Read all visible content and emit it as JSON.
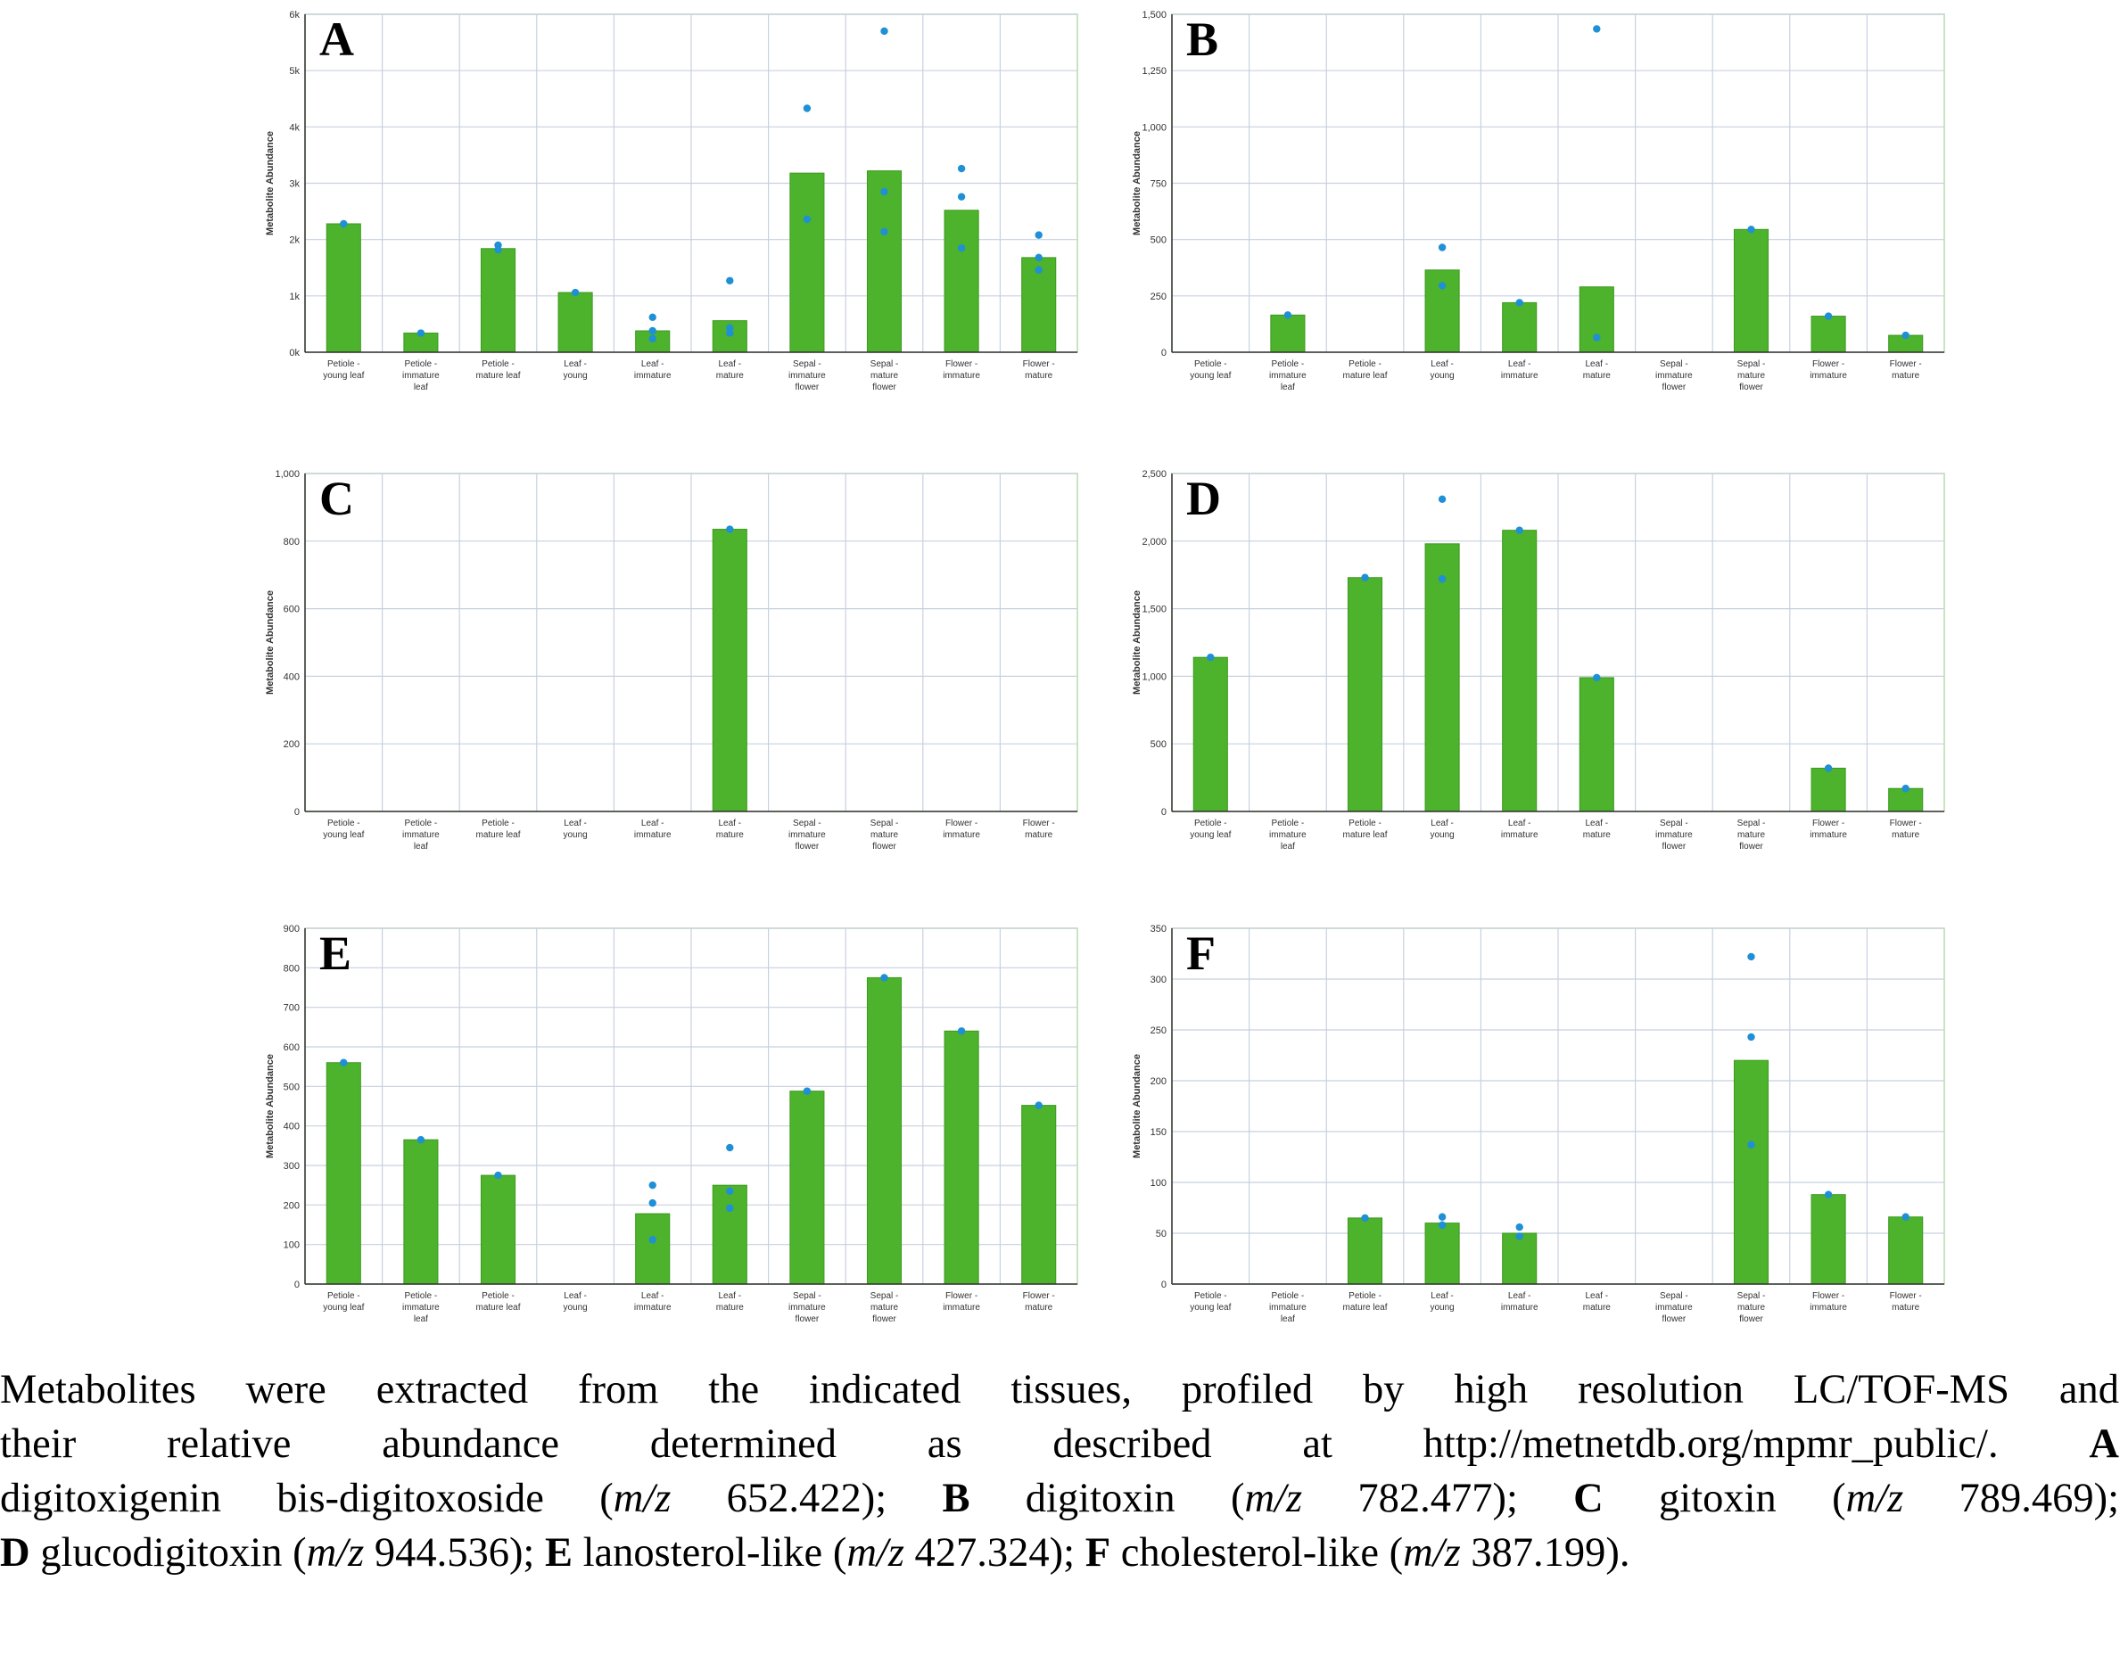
{
  "colors": {
    "bar": "#4db22c",
    "dot": "#1f8fd6",
    "grid": "#c8d0e0",
    "frame": "#b9dcae"
  },
  "chart_data": [
    {
      "type": "bar",
      "panel": "A",
      "ylabel": "Metabolite Abundance",
      "ylim": [
        0,
        6000
      ],
      "ytick_values": [
        0,
        1000,
        2000,
        3000,
        4000,
        5000,
        6000
      ],
      "ytick_labels": [
        "0k",
        "1k",
        "2k",
        "3k",
        "4k",
        "5k",
        "6k"
      ],
      "categories": [
        [
          "Petiole -",
          "young leaf"
        ],
        [
          "Petiole -",
          "immature",
          "leaf"
        ],
        [
          "Petiole -",
          "mature leaf"
        ],
        [
          "Leaf -",
          "young"
        ],
        [
          "Leaf -",
          "immature"
        ],
        [
          "Leaf -",
          "mature"
        ],
        [
          "Sepal -",
          "immature",
          "flower"
        ],
        [
          "Sepal -",
          "mature",
          "flower"
        ],
        [
          "Flower -",
          "immature"
        ],
        [
          "Flower -",
          "mature"
        ]
      ],
      "values": [
        2280,
        340,
        1840,
        1060,
        380,
        560,
        3180,
        3220,
        2520,
        1680
      ],
      "replicates": [
        [
          2280
        ],
        [
          340
        ],
        [
          1900,
          1820
        ],
        [
          1060
        ],
        [
          620,
          380,
          240
        ],
        [
          1270,
          430,
          340
        ],
        [
          4330,
          2360
        ],
        [
          5700,
          2850,
          2140
        ],
        [
          3260,
          2760,
          1850
        ],
        [
          2080,
          1680,
          1460
        ]
      ]
    },
    {
      "type": "bar",
      "panel": "B",
      "ylabel": "Metabolite Abundance",
      "ylim": [
        0,
        1500
      ],
      "ytick_values": [
        0,
        250,
        500,
        750,
        1000,
        1250,
        1500
      ],
      "ytick_labels": [
        "0",
        "250",
        "500",
        "750",
        "1,000",
        "1,250",
        "1,500"
      ],
      "categories": [
        [
          "Petiole -",
          "young leaf"
        ],
        [
          "Petiole -",
          "immature",
          "leaf"
        ],
        [
          "Petiole -",
          "mature leaf"
        ],
        [
          "Leaf -",
          "young"
        ],
        [
          "Leaf -",
          "immature"
        ],
        [
          "Leaf -",
          "mature"
        ],
        [
          "Sepal -",
          "immature",
          "flower"
        ],
        [
          "Sepal -",
          "mature",
          "flower"
        ],
        [
          "Flower -",
          "immature"
        ],
        [
          "Flower -",
          "mature"
        ]
      ],
      "values": [
        0,
        165,
        0,
        365,
        220,
        290,
        0,
        545,
        160,
        75
      ],
      "replicates": [
        [],
        [
          165
        ],
        [],
        [
          465,
          295
        ],
        [
          220
        ],
        [
          1435,
          65
        ],
        [],
        [
          545
        ],
        [
          160
        ],
        [
          75
        ]
      ]
    },
    {
      "type": "bar",
      "panel": "C",
      "ylabel": "Metabolite Abundance",
      "ylim": [
        0,
        1000
      ],
      "ytick_values": [
        0,
        200,
        400,
        600,
        800,
        1000
      ],
      "ytick_labels": [
        "0",
        "200",
        "400",
        "600",
        "800",
        "1,000"
      ],
      "categories": [
        [
          "Petiole -",
          "young leaf"
        ],
        [
          "Petiole -",
          "immature",
          "leaf"
        ],
        [
          "Petiole -",
          "mature leaf"
        ],
        [
          "Leaf -",
          "young"
        ],
        [
          "Leaf -",
          "immature"
        ],
        [
          "Leaf -",
          "mature"
        ],
        [
          "Sepal -",
          "immature",
          "flower"
        ],
        [
          "Sepal -",
          "mature",
          "flower"
        ],
        [
          "Flower -",
          "immature"
        ],
        [
          "Flower -",
          "mature"
        ]
      ],
      "values": [
        0,
        0,
        0,
        0,
        0,
        835,
        0,
        0,
        0,
        0
      ],
      "replicates": [
        [],
        [],
        [],
        [],
        [],
        [
          835
        ],
        [],
        [],
        [],
        []
      ]
    },
    {
      "type": "bar",
      "panel": "D",
      "ylabel": "Metabolite Abundance",
      "ylim": [
        0,
        2500
      ],
      "ytick_values": [
        0,
        500,
        1000,
        1500,
        2000,
        2500
      ],
      "ytick_labels": [
        "0",
        "500",
        "1,000",
        "1,500",
        "2,000",
        "2,500"
      ],
      "categories": [
        [
          "Petiole -",
          "young leaf"
        ],
        [
          "Petiole -",
          "immature",
          "leaf"
        ],
        [
          "Petiole -",
          "mature leaf"
        ],
        [
          "Leaf -",
          "young"
        ],
        [
          "Leaf -",
          "immature"
        ],
        [
          "Leaf -",
          "mature"
        ],
        [
          "Sepal -",
          "immature",
          "flower"
        ],
        [
          "Sepal -",
          "mature",
          "flower"
        ],
        [
          "Flower -",
          "immature"
        ],
        [
          "Flower -",
          "mature"
        ]
      ],
      "values": [
        1140,
        0,
        1730,
        1980,
        2080,
        990,
        0,
        0,
        320,
        170
      ],
      "replicates": [
        [
          1140
        ],
        [],
        [
          1730
        ],
        [
          2310,
          1720
        ],
        [
          2080
        ],
        [
          990
        ],
        [],
        [],
        [
          320
        ],
        [
          170
        ]
      ]
    },
    {
      "type": "bar",
      "panel": "E",
      "ylabel": "Metabolite Abundance",
      "ylim": [
        0,
        900
      ],
      "ytick_values": [
        0,
        100,
        200,
        300,
        400,
        500,
        600,
        700,
        800,
        900
      ],
      "ytick_labels": [
        "0",
        "100",
        "200",
        "300",
        "400",
        "500",
        "600",
        "700",
        "800",
        "900"
      ],
      "categories": [
        [
          "Petiole -",
          "young leaf"
        ],
        [
          "Petiole -",
          "immature",
          "leaf"
        ],
        [
          "Petiole -",
          "mature leaf"
        ],
        [
          "Leaf -",
          "young"
        ],
        [
          "Leaf -",
          "immature"
        ],
        [
          "Leaf -",
          "mature"
        ],
        [
          "Sepal -",
          "immature",
          "flower"
        ],
        [
          "Sepal -",
          "mature",
          "flower"
        ],
        [
          "Flower -",
          "immature"
        ],
        [
          "Flower -",
          "mature"
        ]
      ],
      "values": [
        560,
        365,
        275,
        0,
        178,
        250,
        488,
        775,
        640,
        452
      ],
      "replicates": [
        [
          560
        ],
        [
          365
        ],
        [
          275
        ],
        [],
        [
          250,
          205,
          112
        ],
        [
          345,
          235,
          192
        ],
        [
          488
        ],
        [
          775
        ],
        [
          640
        ],
        [
          452
        ]
      ]
    },
    {
      "type": "bar",
      "panel": "F",
      "ylabel": "Metabolite Abundance",
      "ylim": [
        0,
        350
      ],
      "ytick_values": [
        0,
        50,
        100,
        150,
        200,
        250,
        300,
        350
      ],
      "ytick_labels": [
        "0",
        "50",
        "100",
        "150",
        "200",
        "250",
        "300",
        "350"
      ],
      "categories": [
        [
          "Petiole -",
          "young leaf"
        ],
        [
          "Petiole -",
          "immature",
          "leaf"
        ],
        [
          "Petiole -",
          "mature leaf"
        ],
        [
          "Leaf -",
          "young"
        ],
        [
          "Leaf -",
          "immature"
        ],
        [
          "Leaf -",
          "mature"
        ],
        [
          "Sepal -",
          "immature",
          "flower"
        ],
        [
          "Sepal -",
          "mature",
          "flower"
        ],
        [
          "Flower -",
          "immature"
        ],
        [
          "Flower -",
          "mature"
        ]
      ],
      "values": [
        0,
        0,
        65,
        60,
        50,
        0,
        0,
        220,
        88,
        66
      ],
      "replicates": [
        [],
        [],
        [
          65
        ],
        [
          66,
          58
        ],
        [
          56,
          47
        ],
        [],
        [],
        [
          322,
          243,
          137
        ],
        [
          88
        ],
        [
          66
        ]
      ]
    }
  ],
  "caption": {
    "line1": "Metabolites were extracted from the indicated tissues, profiled by high resolution LC/TOF-MS and",
    "line2_text": "their relative abundance determined as described at http://metnetdb.org/mpmr_public/.",
    "line2_letter": "A",
    "line3_a": "digitoxigenin bis-digitoxoside (",
    "line3_mz1": "m/z",
    "line3_b": " 652.422); ",
    "line3_letterB": "B",
    "line3_c": " digitoxin (",
    "line3_mz2": "m/z",
    "line3_d": " 782.477); ",
    "line3_letterC": "C",
    "line3_e": " gitoxin (",
    "line3_mz3": "m/z",
    "line3_f": " 789.469);",
    "line4_letterD": "D",
    "line4_a": " glucodigitoxin (",
    "line4_mz1": "m/z",
    "line4_b": " 944.536); ",
    "line4_letterE": "E",
    "line4_c": " lanosterol-like (",
    "line4_mz2": "m/z",
    "line4_d": " 427.324); ",
    "line4_letterF": "F",
    "line4_e": " cholesterol-like (",
    "line4_mz3": "m/z",
    "line4_f": " 387.199)."
  }
}
